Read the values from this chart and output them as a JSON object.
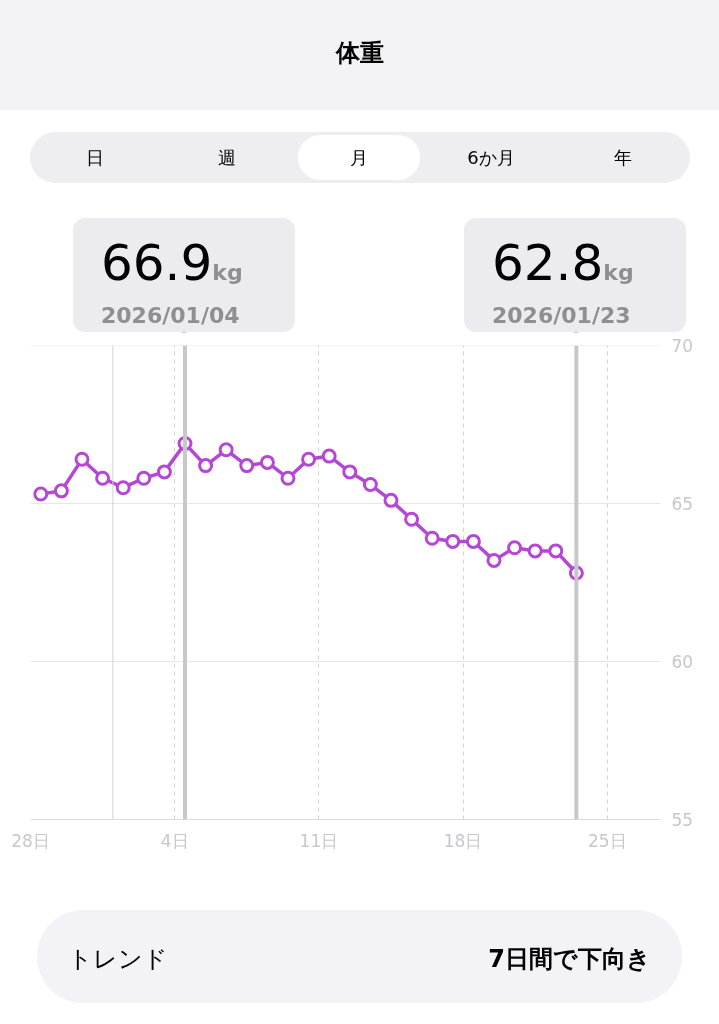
{
  "chart_data": {
    "type": "line",
    "title": "体重",
    "x": [
      "2025-12-28T12:00",
      "2025-12-29T12:00",
      "2025-12-30T12:00",
      "2025-12-31T12:00",
      "2026-01-01T12:00",
      "2026-01-02T12:00",
      "2026-01-03T12:00",
      "2026-01-04T12:00",
      "2026-01-05T12:00",
      "2026-01-06T12:00",
      "2026-01-07T12:00",
      "2026-01-08T12:00",
      "2026-01-09T12:00",
      "2026-01-10T12:00",
      "2026-01-11T12:00",
      "2026-01-12T12:00",
      "2026-01-13T12:00",
      "2026-01-14T12:00",
      "2026-01-15T12:00",
      "2026-01-16T12:00",
      "2026-01-17T12:00",
      "2026-01-18T12:00",
      "2026-01-19T12:00",
      "2026-01-20T12:00",
      "2026-01-21T12:00",
      "2026-01-22T12:00",
      "2026-01-23T12:00"
    ],
    "series": [
      {
        "color": "#b547d6",
        "values": [
          65.3,
          65.4,
          66.4,
          65.8,
          65.5,
          65.8,
          66.0,
          66.9,
          66.2,
          66.7,
          66.2,
          66.3,
          65.8,
          66.4,
          66.5,
          66.0,
          65.6,
          65.1,
          64.5,
          63.9,
          63.8,
          63.8,
          63.2,
          63.6,
          63.5,
          63.5,
          62.8
        ]
      }
    ],
    "marker": "circle",
    "line_style": "solid",
    "xlim": [
      "2025-12-28T00:00",
      "2026-01-27T14:00"
    ],
    "xticks": [
      {
        "value": "2025-12-28",
        "label": "28日"
      },
      {
        "value": "2026-01-04",
        "label": "4日"
      },
      {
        "value": "2026-01-11",
        "label": "11日"
      },
      {
        "value": "2026-01-18",
        "label": "18日"
      },
      {
        "value": "2026-01-25",
        "label": "25日"
      }
    ],
    "ylim": [
      55,
      70
    ],
    "yticks": [
      55,
      60,
      65,
      70
    ],
    "grid": true,
    "ref_lines": [
      {
        "axis": "x",
        "value": "2026-01-01T00:00",
        "label": null,
        "color": "#d1d1d6"
      },
      {
        "axis": "x",
        "value": "2026-01-04T12:00",
        "label": "66.9kg",
        "color": "#c7c7cc"
      },
      {
        "axis": "x",
        "value": "2026-01-23T12:00",
        "label": "62.8kg",
        "color": "#c7c7cc"
      }
    ],
    "annotations": [
      "日",
      "週",
      "月",
      "6か月",
      "年",
      "2026/01/04",
      "2026/01/23",
      "トレンド",
      "7日間で下向き"
    ]
  }
}
